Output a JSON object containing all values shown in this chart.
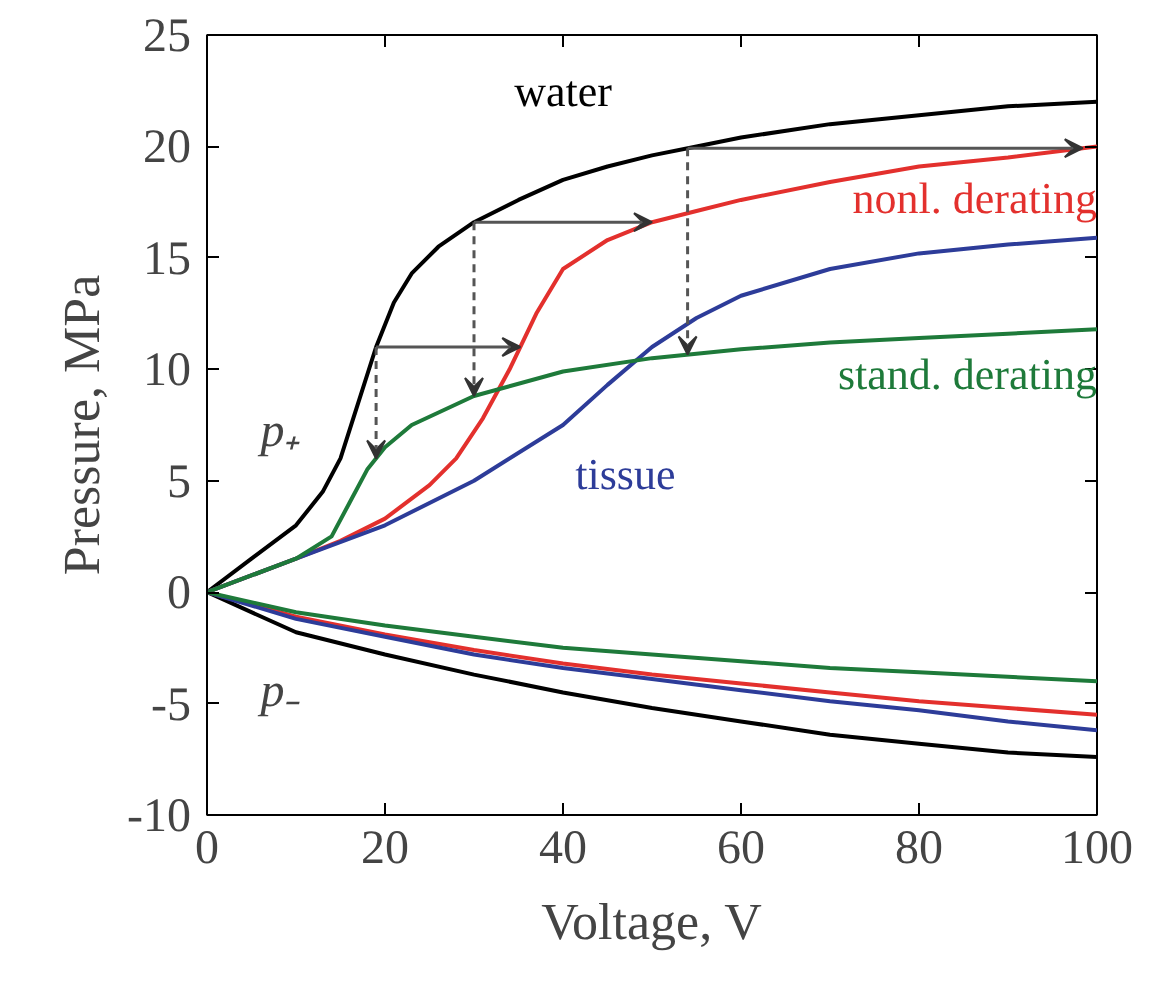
{
  "chart_data": {
    "type": "line",
    "xlabel": "Voltage, V",
    "ylabel": "Pressure, MPa",
    "xlim": [
      0,
      100
    ],
    "ylim": [
      -10,
      25
    ],
    "xticks": [
      0,
      20,
      40,
      60,
      80,
      100
    ],
    "yticks": [
      -10,
      -5,
      0,
      5,
      10,
      15,
      20,
      25
    ],
    "grid": false,
    "marker": "none",
    "line_style": "solid",
    "annotations": [
      "p₊",
      "p₋"
    ],
    "series": [
      {
        "name": "water",
        "color": "#000000",
        "x": [
          0,
          5,
          10,
          13,
          15,
          17,
          19,
          21,
          23,
          26,
          30,
          35,
          40,
          45,
          50,
          55,
          60,
          70,
          80,
          90,
          100
        ],
        "values": [
          0,
          1.5,
          3,
          4.5,
          6,
          8.5,
          11,
          13,
          14.3,
          15.5,
          16.6,
          17.6,
          18.5,
          19.1,
          19.6,
          20,
          20.4,
          21,
          21.4,
          21.8,
          22
        ]
      },
      {
        "name": "nonl. derating",
        "color": "#e3302d",
        "x": [
          0,
          10,
          15,
          20,
          25,
          28,
          31,
          34,
          37,
          40,
          45,
          50,
          55,
          60,
          70,
          80,
          90,
          100
        ],
        "values": [
          0,
          1.5,
          2.3,
          3.3,
          4.8,
          6,
          7.8,
          10,
          12.5,
          14.5,
          15.8,
          16.6,
          17.1,
          17.6,
          18.4,
          19.1,
          19.5,
          20
        ]
      },
      {
        "name": "tissue",
        "color": "#2d3c99",
        "x": [
          0,
          10,
          20,
          30,
          40,
          45,
          50,
          55,
          60,
          70,
          80,
          90,
          100
        ],
        "values": [
          0,
          1.5,
          3,
          5,
          7.5,
          9.3,
          11,
          12.3,
          13.3,
          14.5,
          15.2,
          15.6,
          15.9
        ]
      },
      {
        "name": "stand. derating",
        "color": "#1e7a3a",
        "x": [
          0,
          10,
          14,
          16,
          18,
          20,
          23,
          30,
          40,
          50,
          60,
          70,
          80,
          90,
          100
        ],
        "values": [
          0,
          1.5,
          2.5,
          4,
          5.5,
          6.5,
          7.5,
          8.8,
          9.9,
          10.5,
          10.9,
          11.2,
          11.4,
          11.6,
          11.8
        ]
      },
      {
        "color": "#000000",
        "x": [
          0,
          10,
          20,
          30,
          40,
          50,
          60,
          70,
          80,
          90,
          100
        ],
        "values": [
          0,
          -1.8,
          -2.8,
          -3.7,
          -4.5,
          -5.2,
          -5.8,
          -6.4,
          -6.8,
          -7.2,
          -7.4
        ]
      },
      {
        "color": "#e3302d",
        "x": [
          0,
          10,
          20,
          30,
          40,
          50,
          60,
          70,
          80,
          90,
          100
        ],
        "values": [
          0,
          -1.1,
          -1.9,
          -2.6,
          -3.2,
          -3.7,
          -4.1,
          -4.5,
          -4.9,
          -5.2,
          -5.5
        ]
      },
      {
        "color": "#2d3c99",
        "x": [
          0,
          10,
          20,
          30,
          40,
          50,
          60,
          70,
          80,
          90,
          100
        ],
        "values": [
          0,
          -1.2,
          -2,
          -2.8,
          -3.4,
          -3.9,
          -4.4,
          -4.9,
          -5.3,
          -5.8,
          -6.2
        ]
      },
      {
        "color": "#1e7a3a",
        "x": [
          0,
          10,
          20,
          30,
          40,
          50,
          60,
          70,
          80,
          90,
          100
        ],
        "values": [
          0,
          -0.9,
          -1.5,
          -2,
          -2.5,
          -2.8,
          -3.1,
          -3.4,
          -3.6,
          -3.8,
          -4
        ]
      }
    ]
  }
}
